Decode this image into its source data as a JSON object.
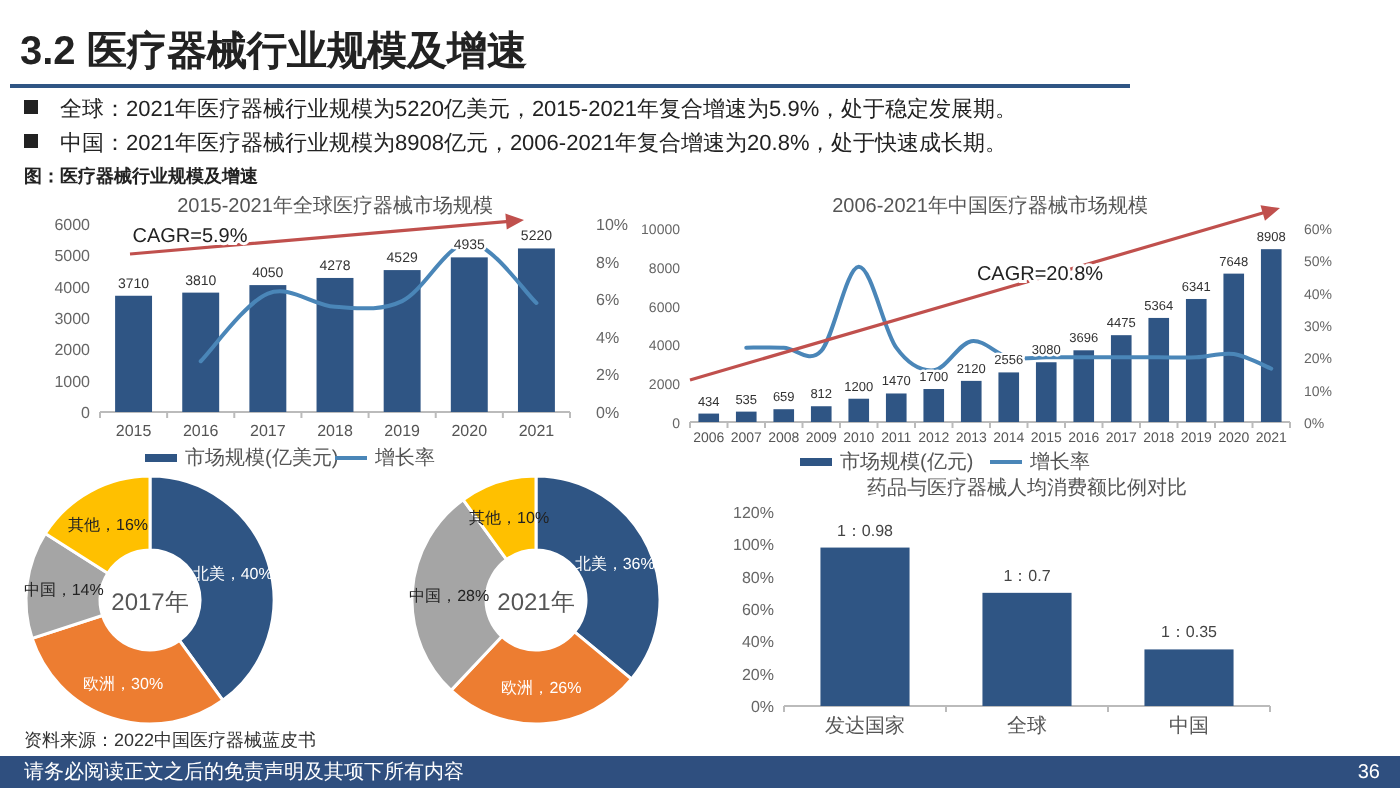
{
  "chart_data": [
    {
      "type": "other",
      "title": "3.2 医疗器械行业规模及增速",
      "annotations": [
        "全球：2021年医疗器械行业规模为5220亿美元，2015-2021年复合增速为5.9%，处于稳定发展期。",
        "中国：2021年医疗器械行业规模为8908亿元，2006-2021年复合增速为20.8%，处于快速成长期。",
        "图：医疗器械行业规模及增速"
      ]
    },
    {
      "type": "bar",
      "title": "2015-2021年全球医疗器械市场规模",
      "categories": [
        "2015",
        "2016",
        "2017",
        "2018",
        "2019",
        "2020",
        "2021"
      ],
      "series": [
        {
          "name": "市场规模(亿美元)",
          "type": "bar",
          "color": "#2f5584",
          "values": [
            3710,
            3810,
            4050,
            4278,
            4529,
            4935,
            5220
          ],
          "value_labels": [
            "3710",
            "3810",
            "4050",
            "4278",
            "4529",
            "4935",
            "5220"
          ]
        },
        {
          "name": "增长率",
          "type": "line",
          "axis": "y2",
          "color": "#4a86b8",
          "values": [
            null,
            2.7,
            6.3,
            5.6,
            5.9,
            9.0,
            5.8
          ]
        }
      ],
      "ylim": [
        0,
        6000
      ],
      "yticks": [
        0,
        1000,
        2000,
        3000,
        4000,
        5000,
        6000
      ],
      "y2lim": [
        0,
        10
      ],
      "y2ticks": [
        {
          "value": 0,
          "label": "0%"
        },
        {
          "value": 2,
          "label": "2%"
        },
        {
          "value": 4,
          "label": "4%"
        },
        {
          "value": 6,
          "label": "6%"
        },
        {
          "value": 8,
          "label": "8%"
        },
        {
          "value": 10,
          "label": "10%"
        }
      ],
      "legend": "bottom",
      "annotations": [
        "CAGR=5.9%"
      ]
    },
    {
      "type": "bar",
      "title": "2006-2021年中国医疗器械市场规模",
      "categories": [
        "2006",
        "2007",
        "2008",
        "2009",
        "2010",
        "2011",
        "2012",
        "2013",
        "2014",
        "2015",
        "2016",
        "2017",
        "2018",
        "2019",
        "2020",
        "2021"
      ],
      "series": [
        {
          "name": "市场规模(亿元)",
          "type": "bar",
          "color": "#2f5584",
          "values": [
            434,
            535,
            659,
            812,
            1200,
            1470,
            1700,
            2120,
            2556,
            3080,
            3696,
            4475,
            5364,
            6341,
            7648,
            8908
          ],
          "value_labels": [
            "434",
            "535",
            "659",
            "812",
            "1200",
            "1470",
            "1700",
            "2120",
            "2556",
            "3080",
            "3696",
            "4475",
            "5364",
            "6341",
            "7648",
            "8908"
          ]
        },
        {
          "name": "增长率",
          "type": "line",
          "axis": "y2",
          "color": "#4a86b8",
          "values": [
            null,
            23,
            23,
            22,
            48,
            23,
            16,
            25,
            20,
            20,
            20,
            20,
            20,
            20,
            21,
            16.5
          ]
        }
      ],
      "ylim": [
        0,
        10000
      ],
      "yticks": [
        0,
        2000,
        4000,
        6000,
        8000,
        10000
      ],
      "y2lim": [
        0,
        60
      ],
      "y2ticks": [
        {
          "value": 0,
          "label": "0%"
        },
        {
          "value": 10,
          "label": "10%"
        },
        {
          "value": 20,
          "label": "20%"
        },
        {
          "value": 30,
          "label": "30%"
        },
        {
          "value": 40,
          "label": "40%"
        },
        {
          "value": 50,
          "label": "50%"
        },
        {
          "value": 60,
          "label": "60%"
        }
      ],
      "legend": "bottom",
      "annotations": [
        "CAGR=20.8%"
      ]
    },
    {
      "type": "donut",
      "title": "2017年",
      "categories": [
        "北美",
        "欧洲",
        "中国",
        "其他"
      ],
      "values": [
        40,
        30,
        14,
        16
      ],
      "colors": [
        "#2f5584",
        "#ed7d31",
        "#a5a5a5",
        "#ffc000"
      ],
      "value_labels": [
        "，40%",
        "，30%",
        "，14%",
        "，16%"
      ]
    },
    {
      "type": "donut",
      "title": "2021年",
      "categories": [
        "北美",
        "欧洲",
        "中国",
        "其他"
      ],
      "values": [
        36,
        26,
        28,
        10
      ],
      "colors": [
        "#2f5584",
        "#ed7d31",
        "#a5a5a5",
        "#ffc000"
      ],
      "value_labels": [
        "，36%",
        "，26%",
        "，28%",
        "，10%"
      ]
    },
    {
      "type": "bar",
      "title": "药品与医疗器械人均消费额比例对比",
      "categories": [
        "发达国家",
        "全球",
        "中国"
      ],
      "series": [
        {
          "type": "bar",
          "color": "#2f5584",
          "values": [
            98,
            70,
            35
          ]
        }
      ],
      "annotations": [
        {
          "text": "1：0.98",
          "x": "发达国家",
          "y": 98
        },
        {
          "text": "1：0.7",
          "x": "全球",
          "y": 70
        },
        {
          "text": "1：0.35",
          "x": "中国",
          "y": 35
        }
      ],
      "ylim": [
        0,
        120
      ],
      "yticks": [
        {
          "value": 0,
          "label": "0%"
        },
        {
          "value": 20,
          "label": "20%"
        },
        {
          "value": 40,
          "label": "40%"
        },
        {
          "value": 60,
          "label": "60%"
        },
        {
          "value": 80,
          "label": "80%"
        },
        {
          "value": 100,
          "label": "100%"
        },
        {
          "value": 120,
          "label": "120%"
        }
      ]
    },
    {
      "type": "other",
      "annotations": [
        "资料来源：2022中国医疗器械蓝皮书",
        "请务必阅读正文之后的免责声明及其项下所有内容",
        "36"
      ]
    }
  ]
}
